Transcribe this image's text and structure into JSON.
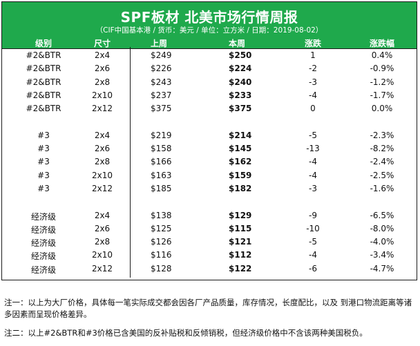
{
  "title": "SPF板材 北美市场行情周报",
  "subtitle": "（CIF中国基本港 / 货币：美元 / 单位：立方米 / 日期：2019-08-02）",
  "columns": [
    "级别",
    "尺寸",
    "上周",
    "本周",
    "涨跌",
    "涨跌幅"
  ],
  "groups": [
    {
      "rows": [
        {
          "grade": "#2&BTR",
          "size": "2x4",
          "prev": "$249",
          "cur": "$250",
          "chg": "1",
          "pct": "0.4%"
        },
        {
          "grade": "#2&BTR",
          "size": "2x6",
          "prev": "$226",
          "cur": "$224",
          "chg": "-2",
          "pct": "-0.9%"
        },
        {
          "grade": "#2&BTR",
          "size": "2x8",
          "prev": "$243",
          "cur": "$240",
          "chg": "-3",
          "pct": "-1.2%"
        },
        {
          "grade": "#2&BTR",
          "size": "2x10",
          "prev": "$237",
          "cur": "$233",
          "chg": "-4",
          "pct": "-1.7%"
        },
        {
          "grade": "#2&BTR",
          "size": "2x12",
          "prev": "$375",
          "cur": "$375",
          "chg": "0",
          "pct": "0.0%"
        }
      ]
    },
    {
      "rows": [
        {
          "grade": "#3",
          "size": "2x4",
          "prev": "$219",
          "cur": "$214",
          "chg": "-5",
          "pct": "-2.3%"
        },
        {
          "grade": "#3",
          "size": "2x6",
          "prev": "$158",
          "cur": "$145",
          "chg": "-13",
          "pct": "-8.2%"
        },
        {
          "grade": "#3",
          "size": "2x8",
          "prev": "$166",
          "cur": "$162",
          "chg": "-4",
          "pct": "-2.4%"
        },
        {
          "grade": "#3",
          "size": "2x10",
          "prev": "$163",
          "cur": "$159",
          "chg": "-4",
          "pct": "-2.5%"
        },
        {
          "grade": "#3",
          "size": "2x12",
          "prev": "$185",
          "cur": "$182",
          "chg": "-3",
          "pct": "-1.6%"
        }
      ]
    },
    {
      "rows": [
        {
          "grade": "经济级",
          "size": "2x4",
          "prev": "$138",
          "cur": "$129",
          "chg": "-9",
          "pct": "-6.5%"
        },
        {
          "grade": "经济级",
          "size": "2x6",
          "prev": "$125",
          "cur": "$115",
          "chg": "-10",
          "pct": "-8.0%"
        },
        {
          "grade": "经济级",
          "size": "2x8",
          "prev": "$126",
          "cur": "$121",
          "chg": "-5",
          "pct": "-4.0%"
        },
        {
          "grade": "经济级",
          "size": "2x10",
          "prev": "$116",
          "cur": "$112",
          "chg": "-4",
          "pct": "-3.4%"
        },
        {
          "grade": "经济级",
          "size": "2x12",
          "prev": "$128",
          "cur": "$122",
          "chg": "-6",
          "pct": "-4.7%"
        }
      ]
    }
  ],
  "notes": [
    "注一：以上为大厂价格，具体每一笔实际成交都会因各厂产品质量，库存情况，长度配比，以及 到港口物流距离等诸多因素而呈现价格差异。",
    "注二：以上#2&BTR和#3价格已含美国的反补贴税和反倾销税，但经济级价格中不含该两种美国税负。"
  ]
}
